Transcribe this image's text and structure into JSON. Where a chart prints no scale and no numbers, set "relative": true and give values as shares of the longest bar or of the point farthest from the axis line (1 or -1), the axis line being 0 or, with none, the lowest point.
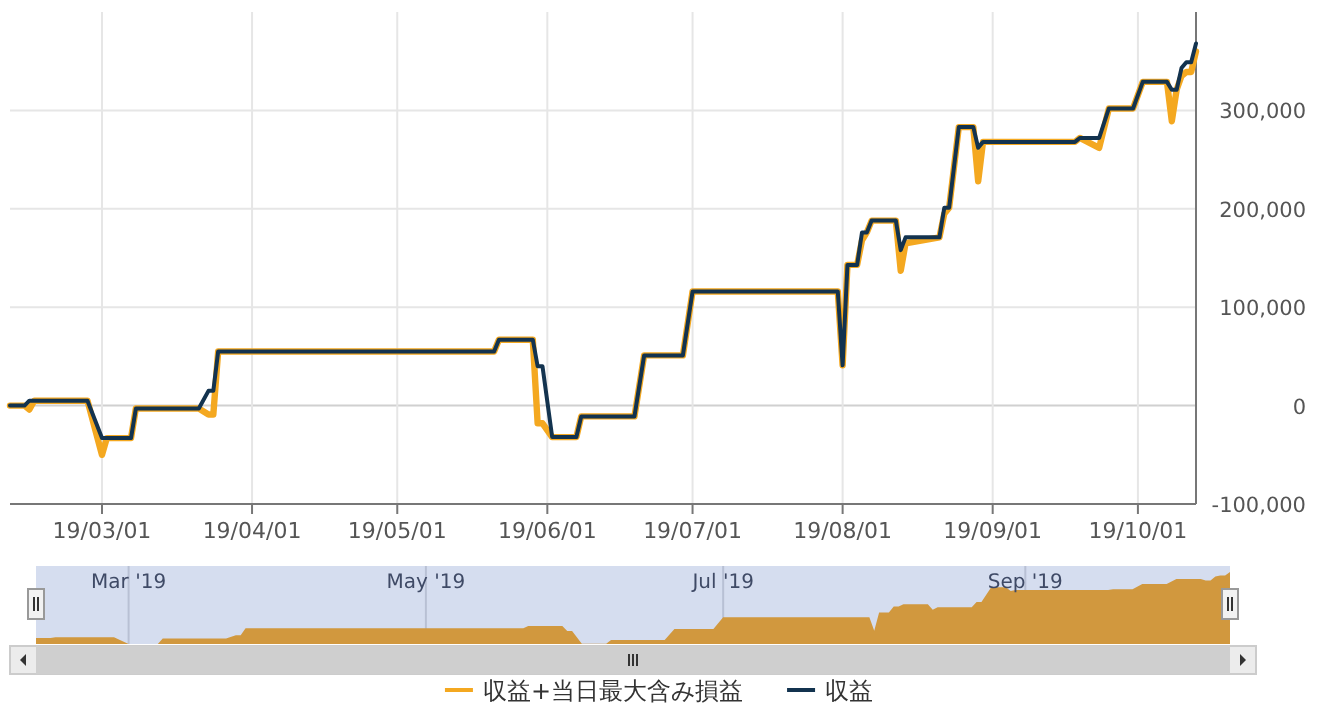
{
  "chart_data": [
    {
      "type": "line",
      "x": [
        "2019-02-10",
        "2019-02-13",
        "2019-02-14",
        "2019-02-15",
        "2019-02-26",
        "2019-03-01",
        "2019-03-02",
        "2019-03-07",
        "2019-03-08",
        "2019-03-21",
        "2019-03-23",
        "2019-03-24",
        "2019-03-25",
        "2019-05-21",
        "2019-05-22",
        "2019-05-29",
        "2019-05-30",
        "2019-05-31",
        "2019-06-02",
        "2019-06-07",
        "2019-06-08",
        "2019-06-19",
        "2019-06-21",
        "2019-06-29",
        "2019-07-01",
        "2019-07-31",
        "2019-08-01",
        "2019-08-02",
        "2019-08-04",
        "2019-08-05",
        "2019-08-06",
        "2019-08-07",
        "2019-08-12",
        "2019-08-13",
        "2019-08-14",
        "2019-08-21",
        "2019-08-22",
        "2019-08-23",
        "2019-08-25",
        "2019-08-28",
        "2019-08-29",
        "2019-08-30",
        "2019-09-18",
        "2019-09-19",
        "2019-09-23",
        "2019-09-25",
        "2019-09-30",
        "2019-10-02",
        "2019-10-07",
        "2019-10-08",
        "2019-10-09",
        "2019-10-10",
        "2019-10-11",
        "2019-10-12",
        "2019-10-13"
      ],
      "series": [
        {
          "name": "収益+当日最大含み損益",
          "color": "#f4a820",
          "values": [
            0,
            0,
            -4000,
            5000,
            5000,
            -50000,
            -33000,
            -33000,
            -3000,
            -3000,
            -9000,
            -9000,
            55000,
            55000,
            67000,
            67000,
            -18000,
            -18000,
            -32000,
            -32000,
            -11000,
            -11000,
            51000,
            51000,
            116000,
            116000,
            41000,
            143000,
            143000,
            168000,
            176000,
            188000,
            188000,
            137000,
            165000,
            171000,
            195000,
            201000,
            283000,
            283000,
            228000,
            268000,
            268000,
            272000,
            262000,
            302000,
            302000,
            329000,
            329000,
            289000,
            321000,
            335000,
            339000,
            339000,
            360000
          ]
        },
        {
          "name": "収益",
          "color": "#13334f",
          "values": [
            0,
            0,
            5000,
            5000,
            5000,
            -33000,
            -33000,
            -33000,
            -3000,
            -3000,
            15000,
            15000,
            55000,
            55000,
            67000,
            67000,
            40000,
            40000,
            -32000,
            -32000,
            -11000,
            -11000,
            51000,
            51000,
            116000,
            116000,
            41000,
            143000,
            143000,
            176000,
            176000,
            188000,
            188000,
            158000,
            171000,
            171000,
            201000,
            201000,
            283000,
            283000,
            262000,
            268000,
            268000,
            272000,
            272000,
            302000,
            302000,
            329000,
            329000,
            321000,
            321000,
            343000,
            349000,
            349000,
            368000
          ]
        }
      ],
      "xlim": [
        "2019-02-10",
        "2019-10-13"
      ],
      "xticks": [
        {
          "value": "2019-03-01",
          "label": "19/03/01"
        },
        {
          "value": "2019-04-01",
          "label": "19/04/01"
        },
        {
          "value": "2019-05-01",
          "label": "19/05/01"
        },
        {
          "value": "2019-06-01",
          "label": "19/06/01"
        },
        {
          "value": "2019-07-01",
          "label": "19/07/01"
        },
        {
          "value": "2019-08-01",
          "label": "19/08/01"
        },
        {
          "value": "2019-09-01",
          "label": "19/09/01"
        },
        {
          "value": "2019-10-01",
          "label": "19/10/01"
        }
      ],
      "ylim": [
        -100000,
        400000
      ],
      "yticks": [
        {
          "value": -100000,
          "label": "-100,000"
        },
        {
          "value": 0,
          "label": "0"
        },
        {
          "value": 100000,
          "label": "100,000"
        },
        {
          "value": 200000,
          "label": "200,000"
        },
        {
          "value": 300000,
          "label": "300,000"
        }
      ],
      "grid": true,
      "legend": "bottom"
    },
    {
      "type": "area",
      "relative": true,
      "color": "#d1983e",
      "x": [
        "2019-02-10",
        "2019-02-13",
        "2019-02-14",
        "2019-02-26",
        "2019-03-01",
        "2019-03-07",
        "2019-03-08",
        "2019-03-21",
        "2019-03-23",
        "2019-03-24",
        "2019-03-25",
        "2019-05-21",
        "2019-05-22",
        "2019-05-29",
        "2019-05-30",
        "2019-05-31",
        "2019-06-02",
        "2019-06-07",
        "2019-06-08",
        "2019-06-19",
        "2019-06-21",
        "2019-06-29",
        "2019-07-01",
        "2019-07-31",
        "2019-08-01",
        "2019-08-02",
        "2019-08-04",
        "2019-08-05",
        "2019-08-06",
        "2019-08-07",
        "2019-08-12",
        "2019-08-13",
        "2019-08-14",
        "2019-08-21",
        "2019-08-22",
        "2019-08-23",
        "2019-08-25",
        "2019-08-28",
        "2019-08-29",
        "2019-08-30",
        "2019-09-18",
        "2019-09-19",
        "2019-09-23",
        "2019-09-25",
        "2019-09-30",
        "2019-10-02",
        "2019-10-07",
        "2019-10-08",
        "2019-10-09",
        "2019-10-10",
        "2019-10-11",
        "2019-10-12",
        "2019-10-13"
      ],
      "values": [
        0.082,
        0.082,
        0.095,
        0.095,
        0,
        0,
        0.075,
        0.075,
        0.12,
        0.12,
        0.219,
        0.219,
        0.249,
        0.249,
        0.182,
        0.182,
        0.002,
        0.002,
        0.055,
        0.055,
        0.209,
        0.209,
        0.372,
        0.372,
        0.185,
        0.439,
        0.439,
        0.521,
        0.521,
        0.551,
        0.551,
        0.476,
        0.509,
        0.509,
        0.584,
        0.584,
        0.788,
        0.788,
        0.736,
        0.751,
        0.751,
        0.761,
        0.761,
        0.835,
        0.835,
        0.903,
        0.903,
        0.883,
        0.883,
        0.938,
        0.953,
        0.953,
        1
      ],
      "xlim": [
        "2019-02-10",
        "2019-10-13"
      ],
      "xticks": [
        {
          "value": "2019-03-01",
          "label": "Mar '19"
        },
        {
          "value": "2019-05-01",
          "label": "May '19"
        },
        {
          "value": "2019-07-01",
          "label": "Jul '19"
        },
        {
          "value": "2019-09-01",
          "label": "Sep '19"
        }
      ],
      "grid": "x"
    }
  ]
}
